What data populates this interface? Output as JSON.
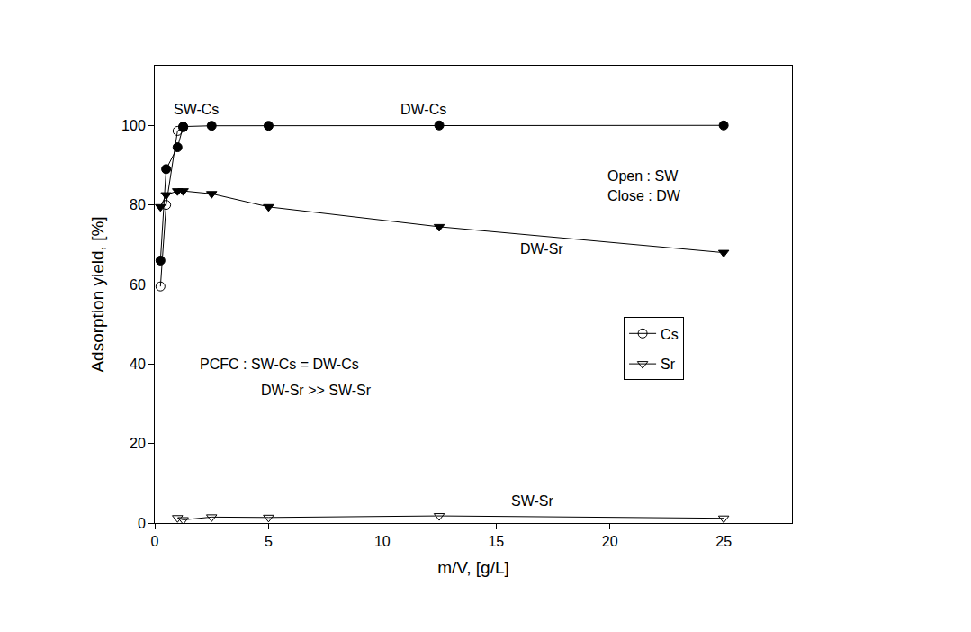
{
  "chart_data": {
    "type": "line",
    "x_label": "m/V, [g/L]",
    "y_label": "Adsorption yield, [%]",
    "xlim": [
      0,
      28
    ],
    "xticks": [
      0,
      5,
      10,
      15,
      20,
      25
    ],
    "ylim": [
      0,
      115
    ],
    "yticks": [
      0,
      20,
      40,
      60,
      80,
      100
    ],
    "grid": false,
    "legend": "lower right",
    "series": [
      {
        "name": "Cs",
        "color": "#000000",
        "marker": "circle-open",
        "line_style": "solid",
        "x": [
          0.25,
          0.5,
          1.0,
          1.25
        ],
        "values": [
          59.5,
          80,
          98.6,
          99.5
        ]
      },
      {
        "name": "Sr",
        "color": "#000000",
        "marker": "triangle-down-open",
        "line_style": "solid",
        "x": [
          1.0,
          1.25,
          2.5,
          5,
          12.5,
          25
        ],
        "values": [
          1.3,
          0.8,
          1.5,
          1.4,
          1.8,
          1.2
        ]
      },
      {
        "name": "Cs",
        "color": "#000000",
        "marker": "circle",
        "line_style": "solid",
        "x": [
          0.25,
          0.5,
          1.0,
          1.25,
          2.5,
          5,
          12.5,
          25
        ],
        "values": [
          66,
          89,
          94.5,
          99.7,
          99.9,
          99.9,
          100,
          100
        ]
      },
      {
        "name": "Sr",
        "color": "#000000",
        "marker": "triangle-down",
        "line_style": "solid",
        "x": [
          0.25,
          0.5,
          1.0,
          1.25,
          2.5,
          5,
          12.5,
          25
        ],
        "values": [
          79.5,
          82.5,
          83.5,
          83.5,
          82.8,
          79.5,
          74.5,
          68
        ]
      }
    ],
    "annotations": [
      "SW-Cs",
      "DW-Cs",
      "DW-Sr",
      "SW-Sr",
      "Open : SW",
      "Close : DW",
      "PCFC : SW-Cs = DW-Cs",
      "DW-Sr >> SW-Sr"
    ]
  }
}
